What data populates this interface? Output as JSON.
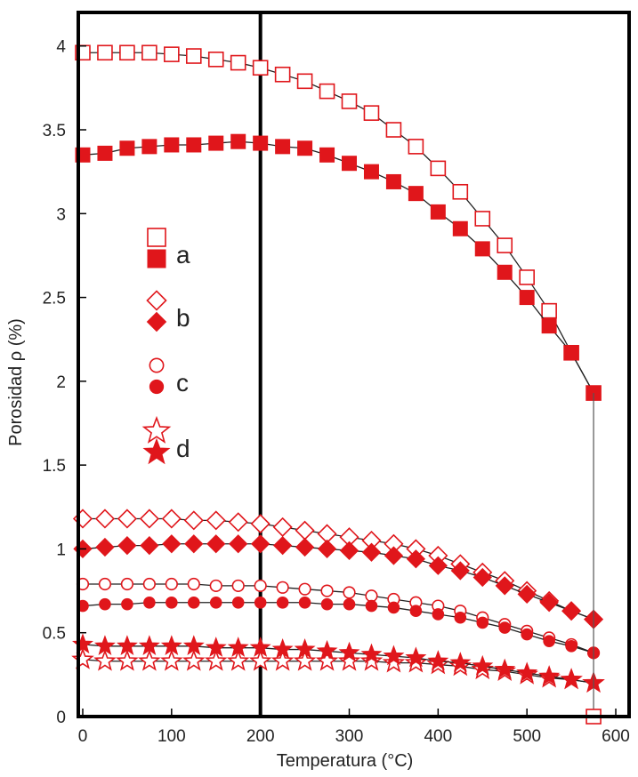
{
  "chart_data": {
    "type": "line",
    "title": "",
    "xlabel": "Temperatura (°C)",
    "ylabel": "Porosidad ρ (%)",
    "xlim": [
      -5,
      615
    ],
    "ylim": [
      0,
      4.2
    ],
    "xticks": [
      0,
      100,
      200,
      300,
      400,
      500,
      600
    ],
    "yticks": [
      0,
      0.5,
      1,
      1.5,
      2,
      2.5,
      3,
      3.5,
      4
    ],
    "xtick_labels": [
      "0",
      "100",
      "200",
      "300",
      "400",
      "500",
      "600"
    ],
    "ytick_labels": [
      "0",
      "0.5",
      "1",
      "1.5",
      "2",
      "2.5",
      "3",
      "3.5",
      "4"
    ],
    "reference_line_x": 200,
    "vertical_drop_x": 575,
    "color": "#e0161b",
    "x": [
      0,
      25,
      50,
      75,
      100,
      125,
      150,
      175,
      200,
      225,
      250,
      275,
      300,
      325,
      350,
      375,
      400,
      425,
      450,
      475,
      500,
      525,
      550,
      575
    ],
    "series": [
      {
        "name": "a",
        "marker": "square",
        "fill": "open",
        "values": [
          3.96,
          3.96,
          3.96,
          3.96,
          3.95,
          3.94,
          3.92,
          3.9,
          3.87,
          3.83,
          3.79,
          3.73,
          3.67,
          3.6,
          3.5,
          3.4,
          3.27,
          3.13,
          2.97,
          2.81,
          2.62,
          2.42,
          2.17,
          1.93
        ]
      },
      {
        "name": "a",
        "marker": "square",
        "fill": "solid",
        "values": [
          3.35,
          3.36,
          3.39,
          3.4,
          3.41,
          3.41,
          3.42,
          3.43,
          3.42,
          3.4,
          3.39,
          3.35,
          3.3,
          3.25,
          3.19,
          3.12,
          3.01,
          2.91,
          2.79,
          2.65,
          2.5,
          2.33,
          2.17,
          1.93
        ]
      },
      {
        "name": "b",
        "marker": "diamond",
        "fill": "open",
        "values": [
          1.18,
          1.18,
          1.18,
          1.18,
          1.18,
          1.17,
          1.17,
          1.16,
          1.15,
          1.13,
          1.11,
          1.09,
          1.07,
          1.05,
          1.03,
          1.0,
          0.96,
          0.91,
          0.86,
          0.81,
          0.75,
          0.69,
          0.63,
          0.58
        ]
      },
      {
        "name": "b",
        "marker": "diamond",
        "fill": "solid",
        "values": [
          1.0,
          1.01,
          1.02,
          1.02,
          1.03,
          1.03,
          1.03,
          1.03,
          1.03,
          1.02,
          1.01,
          1.0,
          0.99,
          0.98,
          0.96,
          0.94,
          0.9,
          0.87,
          0.83,
          0.78,
          0.73,
          0.68,
          0.63,
          0.58
        ]
      },
      {
        "name": "c",
        "marker": "circle",
        "fill": "open",
        "values": [
          0.79,
          0.79,
          0.79,
          0.79,
          0.79,
          0.79,
          0.78,
          0.78,
          0.78,
          0.77,
          0.76,
          0.75,
          0.74,
          0.72,
          0.7,
          0.68,
          0.66,
          0.63,
          0.59,
          0.55,
          0.51,
          0.47,
          0.43,
          0.38
        ]
      },
      {
        "name": "c",
        "marker": "circle",
        "fill": "solid",
        "values": [
          0.66,
          0.67,
          0.67,
          0.68,
          0.68,
          0.68,
          0.68,
          0.68,
          0.68,
          0.68,
          0.68,
          0.67,
          0.67,
          0.66,
          0.65,
          0.63,
          0.61,
          0.59,
          0.56,
          0.53,
          0.49,
          0.45,
          0.42,
          0.38
        ]
      },
      {
        "name": "d",
        "marker": "star",
        "fill": "open",
        "values": [
          0.34,
          0.33,
          0.33,
          0.33,
          0.33,
          0.33,
          0.33,
          0.33,
          0.33,
          0.33,
          0.33,
          0.33,
          0.33,
          0.33,
          0.32,
          0.32,
          0.31,
          0.3,
          0.28,
          0.27,
          0.25,
          0.23,
          0.22,
          0.2
        ]
      },
      {
        "name": "d",
        "marker": "star",
        "fill": "solid",
        "values": [
          0.43,
          0.42,
          0.42,
          0.42,
          0.42,
          0.42,
          0.41,
          0.41,
          0.41,
          0.4,
          0.4,
          0.39,
          0.38,
          0.37,
          0.36,
          0.35,
          0.33,
          0.32,
          0.3,
          0.28,
          0.26,
          0.24,
          0.22,
          0.2
        ]
      }
    ],
    "extra_points": [
      {
        "series": "a",
        "marker": "square",
        "fill": "open",
        "x": 575,
        "y": 0
      }
    ],
    "legend": [
      {
        "label": "a",
        "markers": [
          "square-open",
          "square-solid"
        ]
      },
      {
        "label": "b",
        "markers": [
          "diamond-open",
          "diamond-solid"
        ]
      },
      {
        "label": "c",
        "markers": [
          "circle-open",
          "circle-solid"
        ]
      },
      {
        "label": "d",
        "markers": [
          "star-open",
          "star-solid"
        ]
      }
    ],
    "legend_position": "left-middle"
  }
}
